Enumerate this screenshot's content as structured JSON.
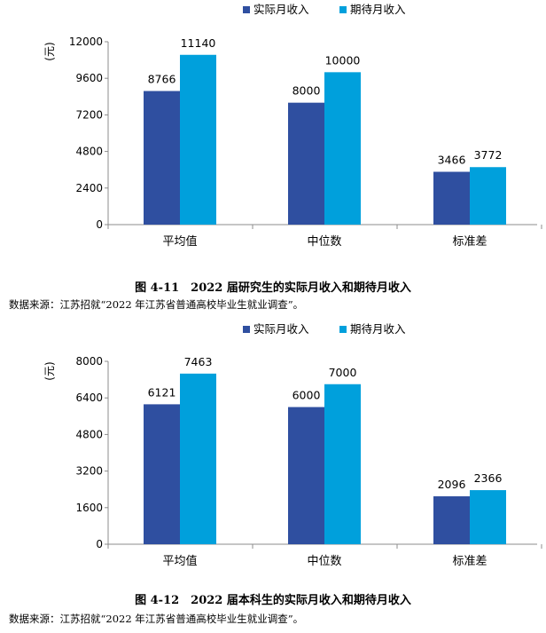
{
  "colors": {
    "actual": "#2F4FA0",
    "expected": "#00A0DC",
    "axis": "#8c8c8c"
  },
  "chart_data": [
    {
      "type": "bar",
      "caption": "图 4-11　2022 届研究生的实际月收入和期待月收入",
      "source": "数据来源：江苏招就“2022 年江苏省普通高校毕业生就业调查”。",
      "ylabel": "(元)",
      "ylim": [
        0,
        12000
      ],
      "yticks": [
        "0",
        "2400",
        "4800",
        "7200",
        "9600",
        "12000"
      ],
      "categories": [
        "平均值",
        "中位数",
        "标准差"
      ],
      "series": [
        {
          "name": "实际月收入",
          "values": [
            8766,
            8000,
            3466
          ]
        },
        {
          "name": "期待月收入",
          "values": [
            11140,
            10000,
            3772
          ]
        }
      ]
    },
    {
      "type": "bar",
      "caption": "图 4-12　2022 届本科生的实际月收入和期待月收入",
      "source": "数据来源：江苏招就“2022 年江苏省普通高校毕业生就业调查”。",
      "ylabel": "(元)",
      "ylim": [
        0,
        8000
      ],
      "yticks": [
        "0",
        "1600",
        "3200",
        "4800",
        "6400",
        "8000"
      ],
      "categories": [
        "平均值",
        "中位数",
        "标准差"
      ],
      "series": [
        {
          "name": "实际月收入",
          "values": [
            6121,
            6000,
            2096
          ]
        },
        {
          "name": "期待月收入",
          "values": [
            7463,
            7000,
            2366
          ]
        }
      ]
    }
  ]
}
